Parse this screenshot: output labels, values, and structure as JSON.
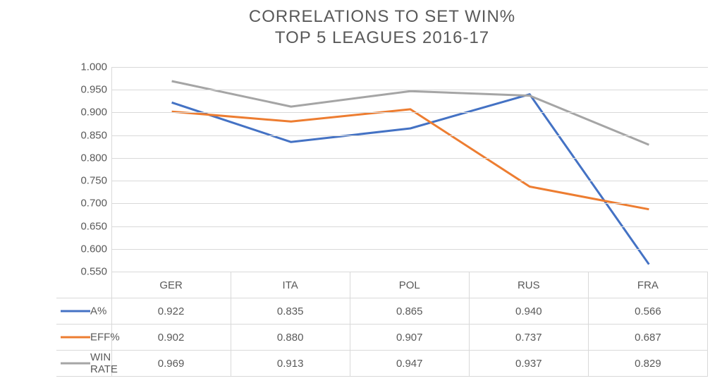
{
  "title": {
    "line1": "CORRELATIONS TO SET WIN%",
    "line2": "TOP 5 LEAGUES 2016-17",
    "fontsize": 24,
    "color": "#595959"
  },
  "chart": {
    "type": "line",
    "background_color": "#ffffff",
    "grid_color": "#d9d9d9",
    "text_color": "#595959",
    "categories": [
      "GER",
      "ITA",
      "POL",
      "RUS",
      "FRA"
    ],
    "ylim": [
      0.55,
      1.0
    ],
    "ytick_step": 0.05,
    "yticks": [
      "0.550",
      "0.600",
      "0.650",
      "0.700",
      "0.750",
      "0.800",
      "0.850",
      "0.900",
      "0.950",
      "1.000"
    ],
    "label_fontsize": 15,
    "line_width": 3,
    "series": [
      {
        "name": "A%",
        "color": "#4472c4",
        "values": [
          0.922,
          0.835,
          0.865,
          0.94,
          0.566
        ],
        "display": [
          "0.922",
          "0.835",
          "0.865",
          "0.940",
          "0.566"
        ]
      },
      {
        "name": "EFF%",
        "color": "#ed7d31",
        "values": [
          0.902,
          0.88,
          0.907,
          0.737,
          0.687
        ],
        "display": [
          "0.902",
          "0.880",
          "0.907",
          "0.737",
          "0.687"
        ]
      },
      {
        "name": "WIN RATE",
        "color": "#a5a5a5",
        "values": [
          0.969,
          0.913,
          0.947,
          0.937,
          0.829
        ],
        "display": [
          "0.969",
          "0.913",
          "0.947",
          "0.937",
          "0.829"
        ]
      }
    ]
  }
}
